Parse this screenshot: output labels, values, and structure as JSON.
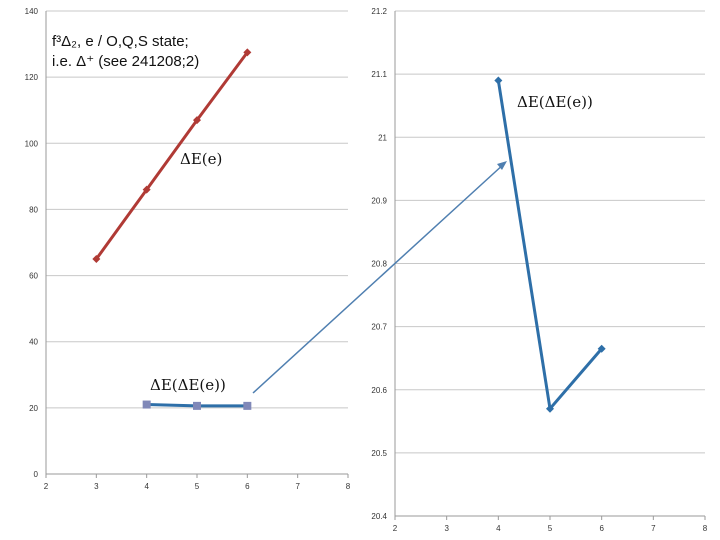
{
  "title_line1": "f³Δ₂, e / O,Q,S state;",
  "title_line2": "i.e. Δ⁺ (see 241208;2)",
  "colors": {
    "red_series": "#b03a35",
    "blue_series": "#2e6fa8",
    "connector": "#4f7fb0"
  },
  "chart_data": [
    {
      "type": "line",
      "xlim": [
        2,
        8
      ],
      "ylim": [
        0,
        140
      ],
      "x_ticks": [
        "2",
        "3",
        "4",
        "5",
        "6",
        "7",
        "8"
      ],
      "y_ticks": [
        "0",
        "20",
        "40",
        "60",
        "80",
        "100",
        "120",
        "140"
      ],
      "grid": true,
      "series": [
        {
          "x": [
            3,
            4,
            5,
            6
          ],
          "y": [
            65,
            86,
            107,
            127.5
          ],
          "color": "#b03a35",
          "marker": "diamond"
        },
        {
          "x": [
            4,
            5,
            6
          ],
          "y": [
            21,
            20.6,
            20.6
          ],
          "color": "#2e6fa8",
          "marker": "square"
        }
      ],
      "annotations": [
        {
          "text": "ΔE(e)"
        },
        {
          "text": "ΔE(ΔE(e))"
        }
      ]
    },
    {
      "type": "line",
      "xlim": [
        2,
        8
      ],
      "ylim": [
        20.4,
        21.2
      ],
      "x_ticks": [
        "2",
        "3",
        "4",
        "5",
        "6",
        "7",
        "8"
      ],
      "y_ticks": [
        "20.4",
        "20.5",
        "20.6",
        "20.7",
        "20.8",
        "20.9",
        "21",
        "21.1",
        "21.2"
      ],
      "grid": true,
      "series": [
        {
          "x": [
            4,
            5,
            6
          ],
          "y": [
            21.09,
            20.57,
            20.665
          ],
          "color": "#2e6fa8",
          "marker": "diamond"
        }
      ],
      "annotations": [
        {
          "text": "ΔE(ΔE(e))"
        }
      ]
    }
  ]
}
